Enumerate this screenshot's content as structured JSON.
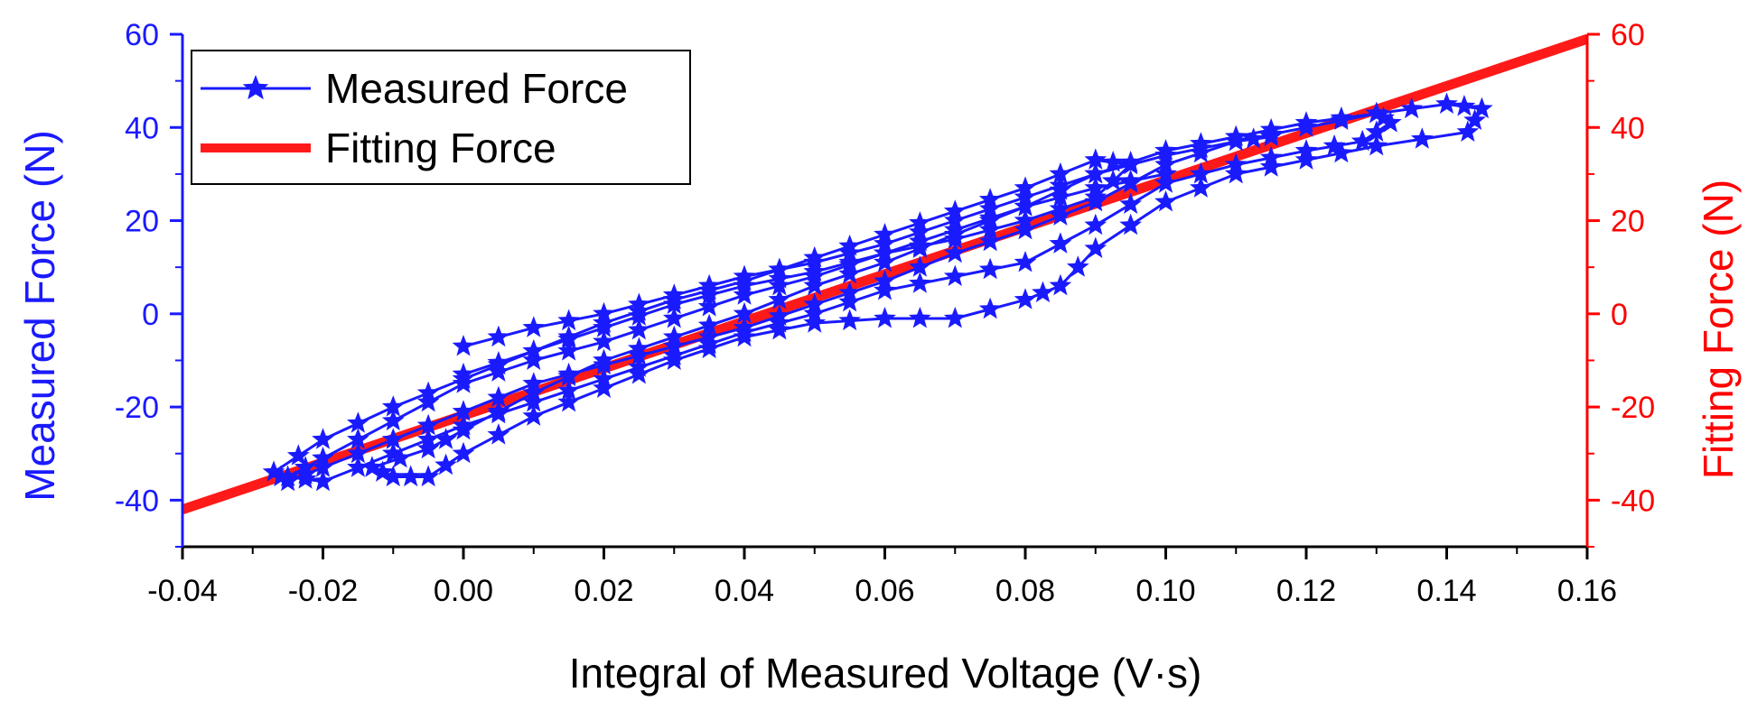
{
  "colors": {
    "left_axis": "#1a1aff",
    "right_axis": "#ff0000",
    "measured_series": "#1a1aff",
    "fitting_series": "#ff1a1a",
    "axis_black": "#000000"
  },
  "chart_data": {
    "type": "scatter",
    "title": "",
    "xlabel": "Integral of Measured Voltage (V·s)",
    "ylabel_left": "Measured Force (N)",
    "ylabel_right": "Fitting Force (N)",
    "xlim": [
      -0.04,
      0.16
    ],
    "ylim_left": [
      -50,
      60
    ],
    "ylim_right": [
      -50,
      60
    ],
    "x_ticks": [
      "-0.04",
      "-0.02",
      "0.00",
      "0.02",
      "0.04",
      "0.06",
      "0.08",
      "0.10",
      "0.12",
      "0.14",
      "0.16"
    ],
    "x_tick_values": [
      -0.04,
      -0.02,
      0.0,
      0.02,
      0.04,
      0.06,
      0.08,
      0.1,
      0.12,
      0.14,
      0.16
    ],
    "y_ticks_left": [
      "-40",
      "-20",
      "0",
      "20",
      "40",
      "60"
    ],
    "y_ticks_right": [
      "-40",
      "-20",
      "0",
      "20",
      "40",
      "60"
    ],
    "y_tick_values": [
      -40,
      -20,
      0,
      20,
      40,
      60
    ],
    "legend": {
      "position": "top-left",
      "entries": [
        "Measured Force",
        "Fitting Force"
      ]
    },
    "series": [
      {
        "name": "Measured Force",
        "marker": "star",
        "axis": "left",
        "loops": [
          [
            [
              0.0,
              -7
            ],
            [
              0.01,
              -3
            ],
            [
              0.02,
              0
            ],
            [
              0.03,
              4
            ],
            [
              0.04,
              8
            ],
            [
              0.05,
              11
            ],
            [
              0.06,
              15
            ],
            [
              0.07,
              20
            ],
            [
              0.08,
              25
            ],
            [
              0.09,
              30
            ],
            [
              0.1,
              34
            ],
            [
              0.11,
              37
            ],
            [
              0.12,
              40
            ],
            [
              0.13,
              43
            ],
            [
              0.14,
              45
            ],
            [
              0.145,
              44
            ],
            [
              0.143,
              39
            ],
            [
              0.13,
              36
            ],
            [
              0.12,
              33
            ],
            [
              0.11,
              30
            ],
            [
              0.1,
              24
            ],
            [
              0.09,
              14
            ],
            [
              0.085,
              6
            ],
            [
              0.08,
              3
            ],
            [
              0.07,
              -1
            ],
            [
              0.06,
              -1
            ],
            [
              0.05,
              -2
            ],
            [
              0.04,
              -5
            ],
            [
              0.03,
              -10
            ],
            [
              0.02,
              -16
            ],
            [
              0.01,
              -22
            ],
            [
              0.0,
              -30
            ],
            [
              -0.005,
              -35
            ],
            [
              -0.01,
              -35
            ],
            [
              -0.013,
              -33
            ],
            [
              -0.005,
              -29
            ],
            [
              0.0,
              -25
            ],
            [
              0.01,
              -17
            ],
            [
              0.02,
              -10
            ],
            [
              0.03,
              -5
            ],
            [
              0.04,
              0
            ],
            [
              0.05,
              6
            ],
            [
              0.06,
              11
            ],
            [
              0.07,
              17
            ],
            [
              0.08,
              23
            ],
            [
              0.09,
              30
            ],
            [
              0.1,
              35
            ],
            [
              0.11,
              38
            ],
            [
              0.12,
              41
            ],
            [
              0.13,
              43
            ],
            [
              0.132,
              41
            ],
            [
              0.128,
              37
            ],
            [
              0.12,
              35
            ],
            [
              0.11,
              32
            ],
            [
              0.1,
              28
            ],
            [
              0.09,
              19
            ],
            [
              0.08,
              11
            ],
            [
              0.07,
              8
            ],
            [
              0.06,
              5
            ],
            [
              0.05,
              0
            ],
            [
              0.04,
              -4
            ],
            [
              0.03,
              -9
            ],
            [
              0.02,
              -14
            ],
            [
              0.01,
              -19
            ],
            [
              0.0,
              -24
            ],
            [
              -0.01,
              -30
            ],
            [
              -0.02,
              -36
            ],
            [
              -0.025,
              -35
            ],
            [
              -0.02,
              -31
            ],
            [
              -0.01,
              -23
            ],
            [
              0.0,
              -15
            ],
            [
              0.01,
              -10
            ],
            [
              0.02,
              -6
            ],
            [
              0.03,
              -1
            ],
            [
              0.04,
              4
            ],
            [
              0.05,
              8
            ],
            [
              0.06,
              13
            ],
            [
              0.07,
              18
            ],
            [
              0.08,
              23
            ],
            [
              0.09,
              27
            ],
            [
              0.1,
              30
            ]
          ],
          [
            [
              0.0,
              -13
            ],
            [
              0.01,
              -8
            ],
            [
              0.02,
              -3
            ],
            [
              0.03,
              2
            ],
            [
              0.04,
              6
            ],
            [
              0.05,
              9
            ],
            [
              0.06,
              13
            ],
            [
              0.07,
              16
            ],
            [
              0.08,
              20
            ],
            [
              0.09,
              25
            ],
            [
              0.095,
              32
            ],
            [
              0.09,
              33
            ],
            [
              0.08,
              27
            ],
            [
              0.07,
              22
            ],
            [
              0.06,
              17
            ],
            [
              0.05,
              12
            ],
            [
              0.04,
              7
            ],
            [
              0.03,
              3
            ],
            [
              0.02,
              -2
            ],
            [
              0.01,
              -8
            ],
            [
              0.0,
              -14
            ],
            [
              -0.01,
              -20
            ],
            [
              -0.02,
              -27
            ],
            [
              -0.027,
              -34
            ],
            [
              -0.025,
              -36
            ],
            [
              -0.02,
              -33
            ],
            [
              -0.01,
              -27
            ],
            [
              0.0,
              -21
            ],
            [
              0.01,
              -15
            ],
            [
              0.02,
              -11
            ],
            [
              0.03,
              -7
            ],
            [
              0.04,
              -3
            ],
            [
              0.05,
              2
            ],
            [
              0.06,
              7
            ],
            [
              0.07,
              13
            ],
            [
              0.08,
              18
            ],
            [
              0.09,
              24
            ],
            [
              0.1,
              32
            ],
            [
              0.11,
              37
            ],
            [
              0.115,
              38
            ]
          ]
        ]
      },
      {
        "name": "Fitting Force",
        "axis": "right",
        "line": [
          [
            -0.04,
            -42
          ],
          [
            0.16,
            59
          ]
        ]
      }
    ]
  }
}
